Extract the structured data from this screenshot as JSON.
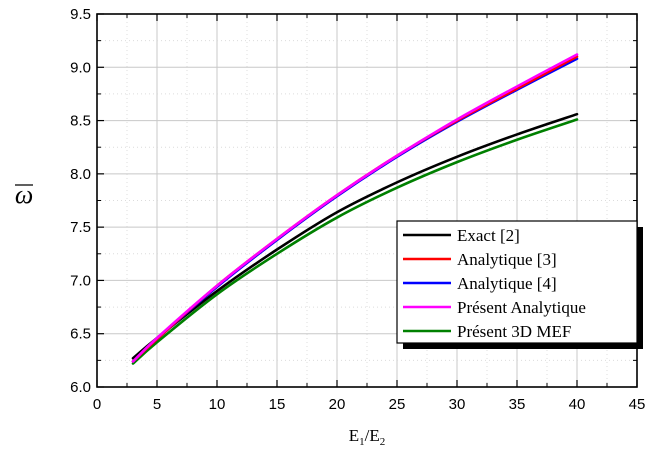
{
  "chart_data": {
    "type": "line",
    "title": "",
    "xlabel": "E",
    "xlabel_sub1": "1",
    "xlabel_sep": "/E",
    "xlabel_sub2": "2",
    "ylabel": "ω",
    "xlim": [
      0,
      45
    ],
    "ylim": [
      6.0,
      9.5
    ],
    "x_ticks": [
      0,
      5,
      10,
      15,
      20,
      25,
      30,
      35,
      40,
      45
    ],
    "y_ticks": [
      6.0,
      6.5,
      7.0,
      7.5,
      8.0,
      8.5,
      9.0,
      9.5
    ],
    "x_tick_labels": [
      "0",
      "5",
      "10",
      "15",
      "20",
      "25",
      "30",
      "35",
      "40",
      "45"
    ],
    "y_tick_labels": [
      "6.0",
      "6.5",
      "7.0",
      "7.5",
      "8.0",
      "8.5",
      "9.0",
      "9.5"
    ],
    "grid": true,
    "legend_position": "right",
    "x": [
      3,
      5,
      10,
      15,
      20,
      25,
      30,
      35,
      40
    ],
    "series": [
      {
        "name": "Exact [2]",
        "color": "#000000",
        "values": [
          6.27,
          6.46,
          6.9,
          7.29,
          7.64,
          7.92,
          8.16,
          8.37,
          8.56
        ]
      },
      {
        "name": "Analytique [3]",
        "color": "#ff0000",
        "values": [
          6.24,
          6.45,
          6.95,
          7.39,
          7.8,
          8.17,
          8.5,
          8.8,
          9.1
        ]
      },
      {
        "name": "Analytique [4]",
        "color": "#0000ff",
        "values": [
          6.24,
          6.45,
          6.94,
          7.38,
          7.79,
          8.16,
          8.49,
          8.79,
          9.08
        ]
      },
      {
        "name": "Présent Analytique",
        "color": "#ff00ff",
        "values": [
          6.24,
          6.46,
          6.95,
          7.39,
          7.8,
          8.17,
          8.51,
          8.82,
          9.12
        ]
      },
      {
        "name": "Présent 3D MEF",
        "color": "#008000",
        "values": [
          6.22,
          6.42,
          6.87,
          7.25,
          7.59,
          7.87,
          8.11,
          8.32,
          8.51
        ]
      }
    ]
  }
}
